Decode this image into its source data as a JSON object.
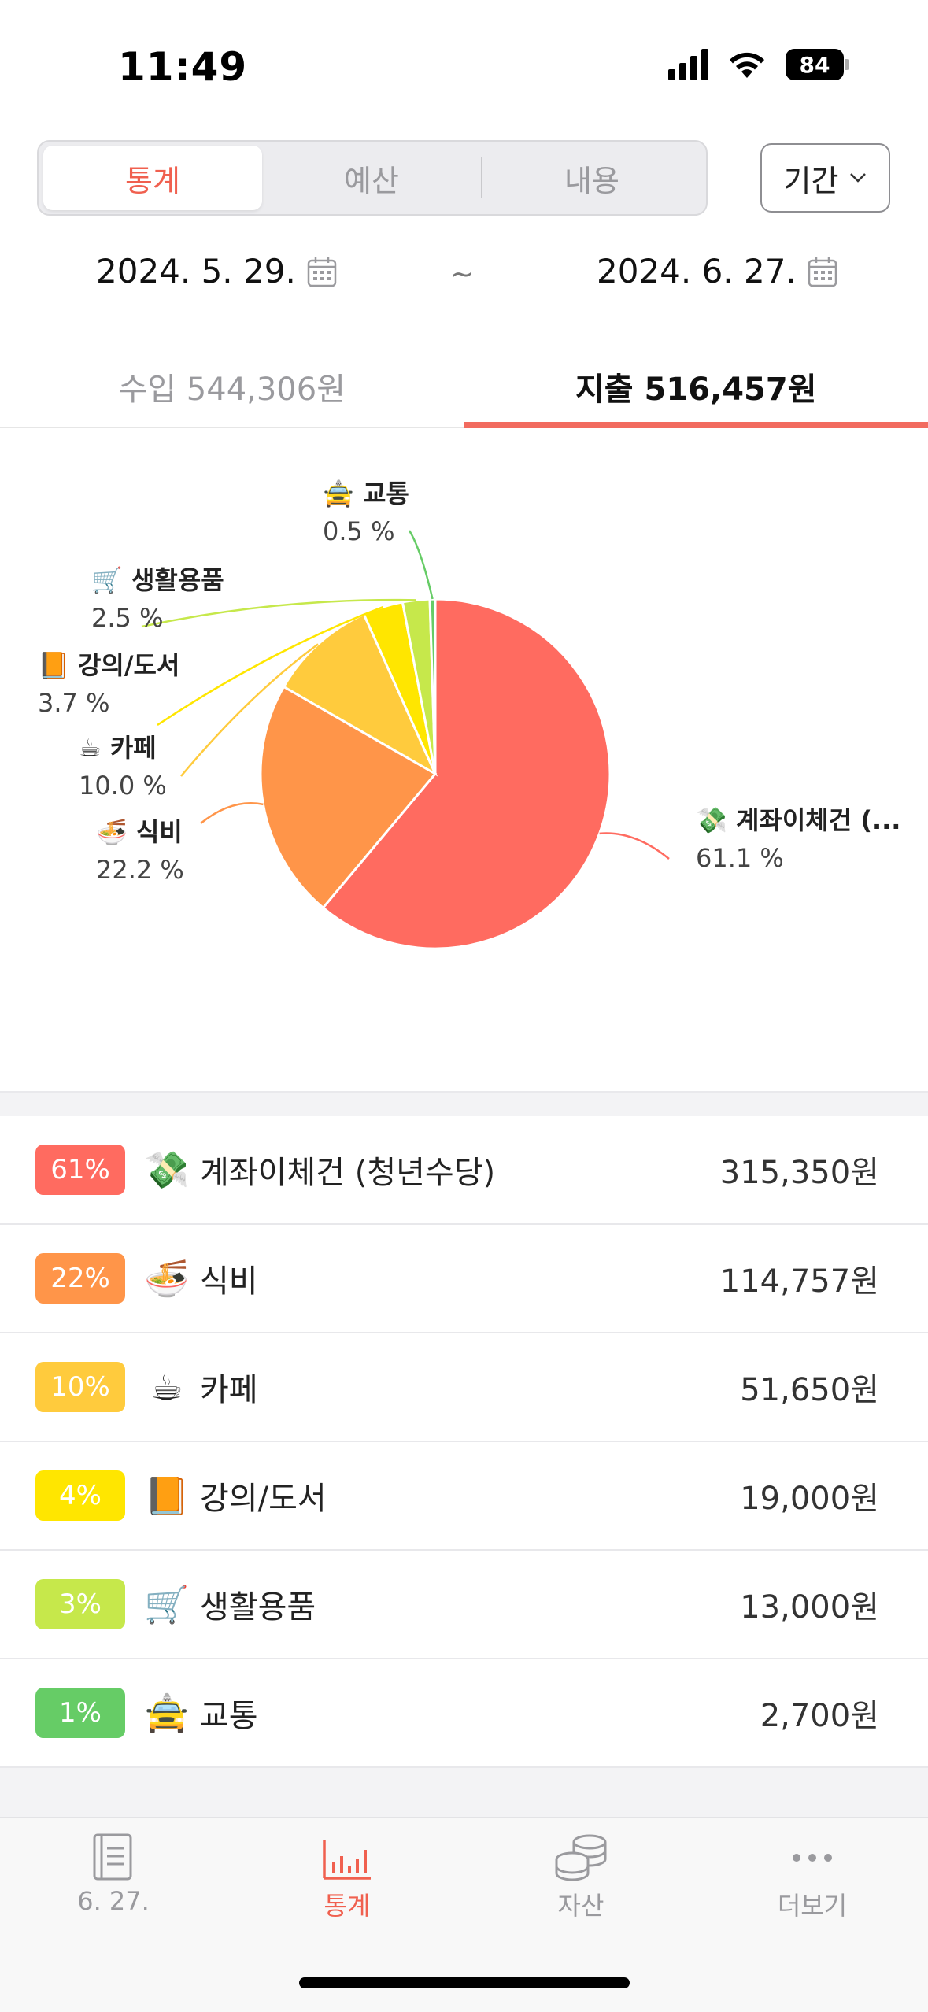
{
  "status_bar": {
    "time": "11:49",
    "battery": "84"
  },
  "segment": {
    "tabs": [
      {
        "label": "통계",
        "active": true
      },
      {
        "label": "예산",
        "active": false
      },
      {
        "label": "내용",
        "active": false
      }
    ],
    "period_button": "기간"
  },
  "dates": {
    "start": "2024. 5. 29.",
    "separator": "~",
    "end": "2024. 6. 27."
  },
  "io_tabs": {
    "income": "수입 544,306원",
    "expense": "지출 516,457원",
    "active": "expense"
  },
  "chart_data": {
    "type": "pie",
    "slices": [
      {
        "label": "💸 계좌이체건 (...",
        "value": 61.1,
        "pct_text": "61.1 %",
        "color": "#ff6b60"
      },
      {
        "label": "🍜 식비",
        "value": 22.2,
        "pct_text": "22.2 %",
        "color": "#ff9549"
      },
      {
        "label": "☕ 카페",
        "value": 10.0,
        "pct_text": "10.0 %",
        "color": "#ffcb3d"
      },
      {
        "label": "📙 강의/도서",
        "value": 3.7,
        "pct_text": "3.7 %",
        "color": "#ffe600"
      },
      {
        "label": "🛒 생활용품",
        "value": 2.5,
        "pct_text": "2.5 %",
        "color": "#c6e84b"
      },
      {
        "label": "🚖 교통",
        "value": 0.5,
        "pct_text": "0.5 %",
        "color": "#66cc66"
      }
    ]
  },
  "list": [
    {
      "pct": "61%",
      "emoji": "💸",
      "name": "계좌이체건 (청년수당)",
      "amount": "315,350원",
      "color": "#ff6b60"
    },
    {
      "pct": "22%",
      "emoji": "🍜",
      "name": "식비",
      "amount": "114,757원",
      "color": "#ff9549"
    },
    {
      "pct": "10%",
      "emoji": "☕",
      "name": "카페",
      "amount": "51,650원",
      "color": "#ffcb3d"
    },
    {
      "pct": "4%",
      "emoji": "📙",
      "name": "강의/도서",
      "amount": "19,000원",
      "color": "#ffe600"
    },
    {
      "pct": "3%",
      "emoji": "🛒",
      "name": "생활용품",
      "amount": "13,000원",
      "color": "#c6e84b"
    },
    {
      "pct": "1%",
      "emoji": "🚖",
      "name": "교통",
      "amount": "2,700원",
      "color": "#66cc66"
    }
  ],
  "tab_bar": [
    {
      "label": "6. 27.",
      "icon": "book-icon",
      "active": false
    },
    {
      "label": "통계",
      "icon": "bar-chart-icon",
      "active": true
    },
    {
      "label": "자산",
      "icon": "coins-icon",
      "active": false
    },
    {
      "label": "더보기",
      "icon": "more-icon",
      "active": false
    }
  ]
}
